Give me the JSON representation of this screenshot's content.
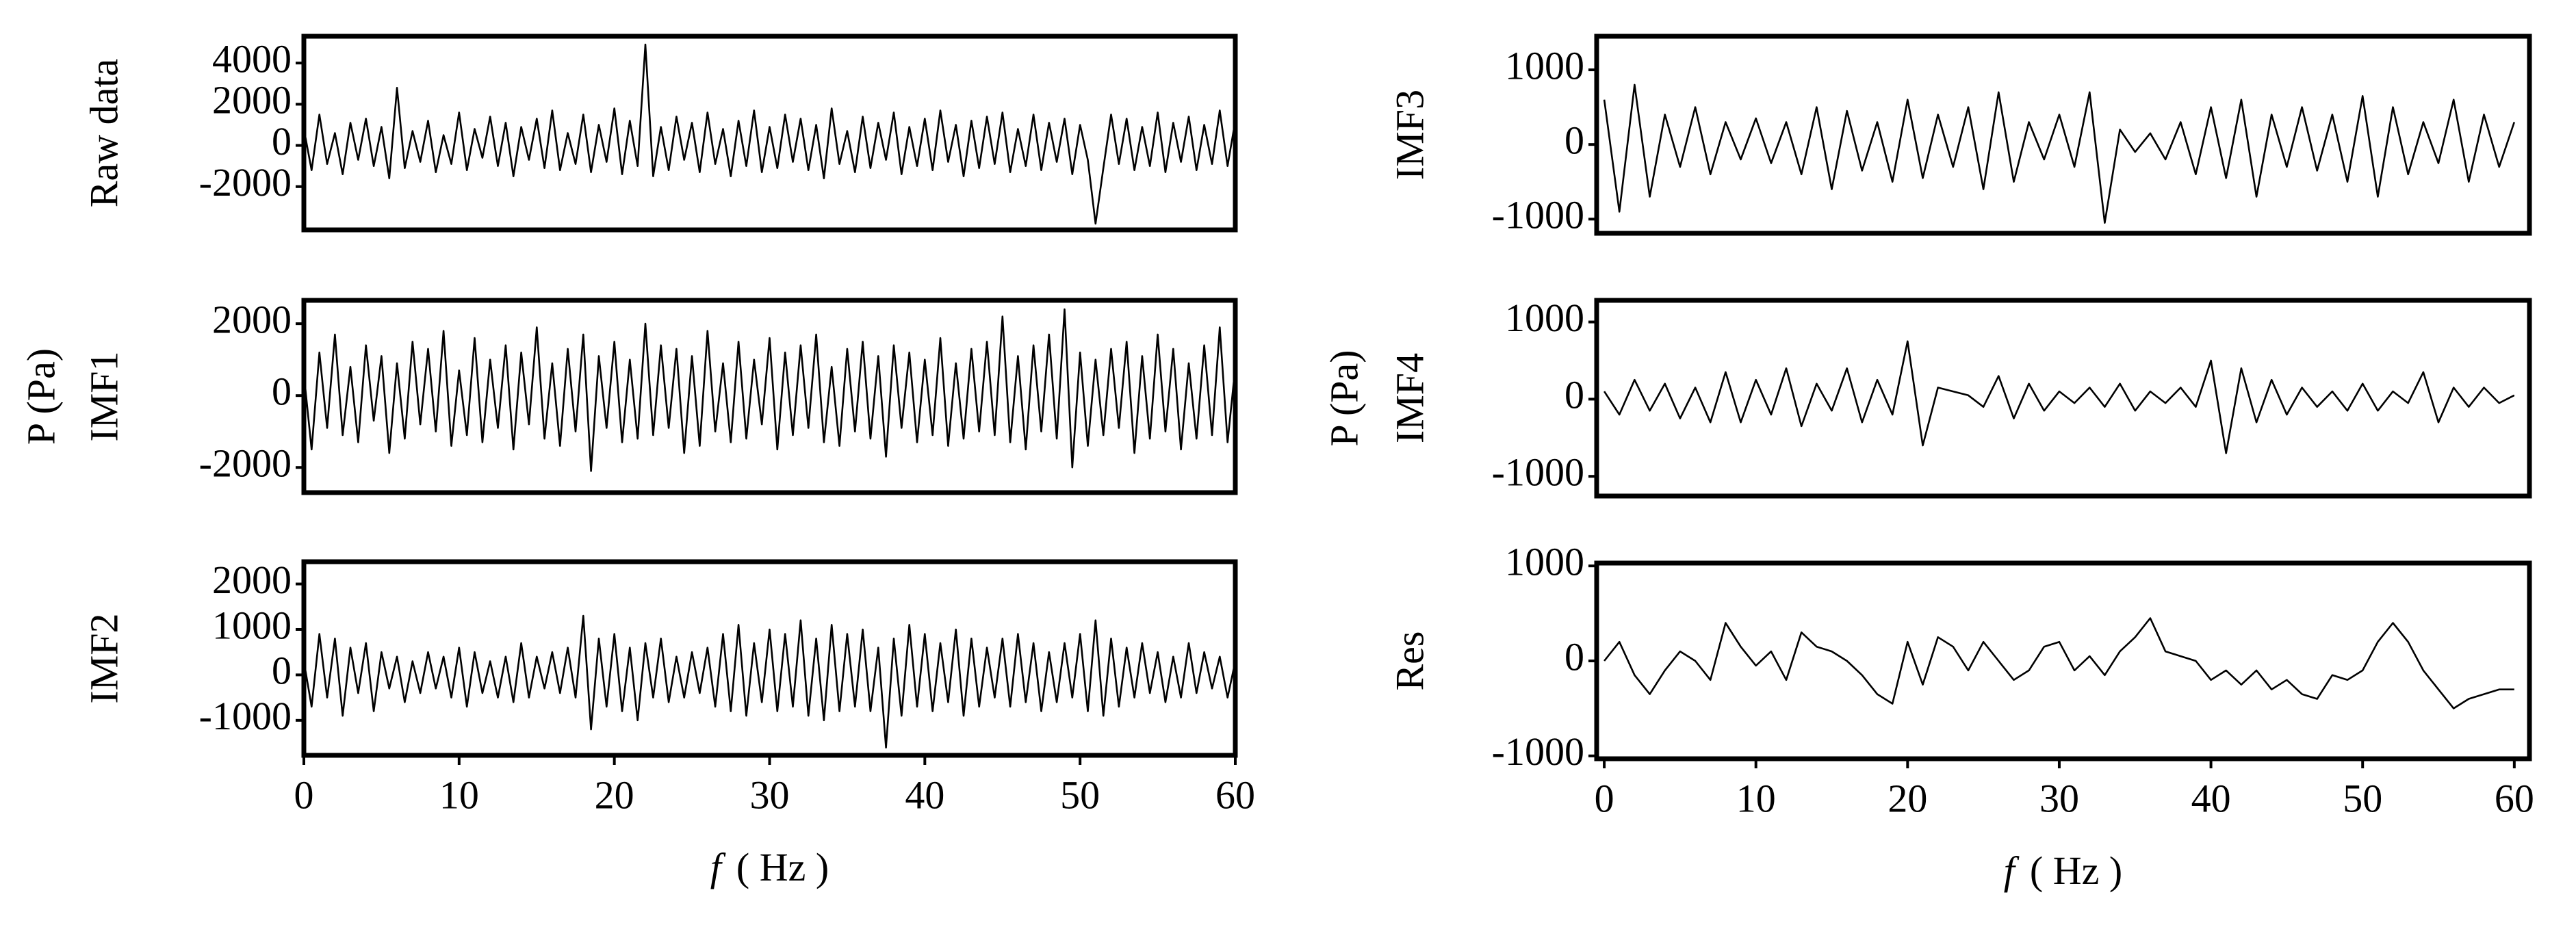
{
  "chart_data": [
    {
      "type": "line",
      "ylabel": "Raw data",
      "color": "#000000",
      "xlim": [
        0,
        60
      ],
      "ylim": [
        -4100,
        5300
      ],
      "yticks": [
        -2000,
        0,
        2000,
        4000
      ],
      "x": [
        0,
        0.5,
        1,
        1.5,
        2,
        2.5,
        3,
        3.5,
        4,
        4.5,
        5,
        5.5,
        6,
        6.5,
        7,
        7.5,
        8,
        8.5,
        9,
        9.5,
        10,
        10.5,
        11,
        11.5,
        12,
        12.5,
        13,
        13.5,
        14,
        14.5,
        15,
        15.5,
        16,
        16.5,
        17,
        17.5,
        18,
        18.5,
        19,
        19.5,
        20,
        20.5,
        21,
        21.5,
        22,
        22.5,
        23,
        23.5,
        24,
        24.5,
        25,
        25.5,
        26,
        26.5,
        27,
        27.5,
        28,
        28.5,
        29,
        29.5,
        30,
        30.5,
        31,
        31.5,
        32,
        32.5,
        33,
        33.5,
        34,
        34.5,
        35,
        35.5,
        36,
        36.5,
        37,
        37.5,
        38,
        38.5,
        39,
        39.5,
        40,
        40.5,
        41,
        41.5,
        42,
        42.5,
        43,
        43.5,
        44,
        44.5,
        45,
        45.5,
        46,
        46.5,
        47,
        47.5,
        48,
        48.5,
        49,
        49.5,
        50,
        50.5,
        51,
        51.5,
        52,
        52.5,
        53,
        53.5,
        54,
        54.5,
        55,
        55.5,
        56,
        56.5,
        57,
        57.5,
        58,
        58.5,
        59,
        59.5,
        60
      ],
      "values": [
        800,
        -1200,
        1500,
        -900,
        600,
        -1400,
        1100,
        -700,
        1300,
        -1000,
        900,
        -1600,
        2800,
        -1100,
        700,
        -800,
        1200,
        -1300,
        500,
        -900,
        1600,
        -1200,
        800,
        -600,
        1400,
        -1000,
        1100,
        -1500,
        900,
        -700,
        1300,
        -1100,
        1700,
        -1200,
        600,
        -900,
        1500,
        -1300,
        1000,
        -800,
        1800,
        -1400,
        1200,
        -1000,
        4900,
        -1500,
        900,
        -1200,
        1400,
        -700,
        1100,
        -1300,
        1600,
        -900,
        800,
        -1500,
        1200,
        -1000,
        1700,
        -1300,
        900,
        -1100,
        1500,
        -800,
        1300,
        -1200,
        1000,
        -1600,
        1800,
        -900,
        700,
        -1300,
        1400,
        -1100,
        1100,
        -700,
        1600,
        -1400,
        900,
        -1000,
        1300,
        -1200,
        1700,
        -800,
        1000,
        -1500,
        1200,
        -1100,
        1400,
        -900,
        1600,
        -1300,
        800,
        -1000,
        1500,
        -1200,
        1100,
        -800,
        1300,
        -1400,
        1000,
        -700,
        -3800,
        -1100,
        1500,
        -900,
        1300,
        -1200,
        900,
        -1000,
        1600,
        -1300,
        1100,
        -800,
        1400,
        -1200,
        1000,
        -900,
        1700,
        -1000,
        1200
      ]
    },
    {
      "type": "line",
      "ylabel": "IMF1",
      "group_label": "P (Pa)",
      "color": "#000000",
      "xlim": [
        0,
        60
      ],
      "ylim": [
        -2700,
        2650
      ],
      "yticks": [
        -2000,
        0,
        2000
      ],
      "x": [
        0,
        0.5,
        1,
        1.5,
        2,
        2.5,
        3,
        3.5,
        4,
        4.5,
        5,
        5.5,
        6,
        6.5,
        7,
        7.5,
        8,
        8.5,
        9,
        9.5,
        10,
        10.5,
        11,
        11.5,
        12,
        12.5,
        13,
        13.5,
        14,
        14.5,
        15,
        15.5,
        16,
        16.5,
        17,
        17.5,
        18,
        18.5,
        19,
        19.5,
        20,
        20.5,
        21,
        21.5,
        22,
        22.5,
        23,
        23.5,
        24,
        24.5,
        25,
        25.5,
        26,
        26.5,
        27,
        27.5,
        28,
        28.5,
        29,
        29.5,
        30,
        30.5,
        31,
        31.5,
        32,
        32.5,
        33,
        33.5,
        34,
        34.5,
        35,
        35.5,
        36,
        36.5,
        37,
        37.5,
        38,
        38.5,
        39,
        39.5,
        40,
        40.5,
        41,
        41.5,
        42,
        42.5,
        43,
        43.5,
        44,
        44.5,
        45,
        45.5,
        46,
        46.5,
        47,
        47.5,
        48,
        48.5,
        49,
        49.5,
        50,
        50.5,
        51,
        51.5,
        52,
        52.5,
        53,
        53.5,
        54,
        54.5,
        55,
        55.5,
        56,
        56.5,
        57,
        57.5,
        58,
        58.5,
        59,
        59.5,
        60
      ],
      "values": [
        600,
        -1500,
        1200,
        -900,
        1700,
        -1100,
        800,
        -1300,
        1400,
        -700,
        1100,
        -1600,
        900,
        -1200,
        1500,
        -800,
        1300,
        -1000,
        1800,
        -1400,
        700,
        -1100,
        1600,
        -1300,
        1000,
        -900,
        1400,
        -1500,
        1200,
        -800,
        1900,
        -1200,
        900,
        -1400,
        1300,
        -1000,
        1700,
        -2100,
        1100,
        -900,
        1500,
        -1300,
        1000,
        -1200,
        2000,
        -1100,
        1400,
        -900,
        1300,
        -1600,
        1100,
        -1400,
        1800,
        -1000,
        900,
        -1300,
        1500,
        -1200,
        1000,
        -800,
        1600,
        -1500,
        1200,
        -1100,
        1400,
        -900,
        1700,
        -1300,
        800,
        -1400,
        1300,
        -1000,
        1500,
        -1200,
        1100,
        -1700,
        1400,
        -900,
        1200,
        -1300,
        1000,
        -1100,
        1600,
        -1400,
        900,
        -1200,
        1300,
        -1000,
        1500,
        -1100,
        2200,
        -1300,
        1100,
        -1500,
        1400,
        -1000,
        1700,
        -1200,
        2400,
        -2000,
        1200,
        -1400,
        1000,
        -1100,
        1300,
        -900,
        1500,
        -1600,
        1100,
        -1200,
        1700,
        -1000,
        1300,
        -1500,
        900,
        -1200,
        1400,
        -1100,
        1900,
        -1300,
        800
      ]
    },
    {
      "type": "line",
      "ylabel": "IMF2",
      "color": "#000000",
      "xlim": [
        0,
        60
      ],
      "ylim": [
        -1770,
        2490
      ],
      "yticks": [
        -1000,
        0,
        1000,
        2000
      ],
      "xticks": [
        0,
        10,
        20,
        30,
        40,
        50,
        60
      ],
      "xlabel_symbol": "f",
      "xlabel_unit": "( Hz )",
      "x": [
        0,
        0.5,
        1,
        1.5,
        2,
        2.5,
        3,
        3.5,
        4,
        4.5,
        5,
        5.5,
        6,
        6.5,
        7,
        7.5,
        8,
        8.5,
        9,
        9.5,
        10,
        10.5,
        11,
        11.5,
        12,
        12.5,
        13,
        13.5,
        14,
        14.5,
        15,
        15.5,
        16,
        16.5,
        17,
        17.5,
        18,
        18.5,
        19,
        19.5,
        20,
        20.5,
        21,
        21.5,
        22,
        22.5,
        23,
        23.5,
        24,
        24.5,
        25,
        25.5,
        26,
        26.5,
        27,
        27.5,
        28,
        28.5,
        29,
        29.5,
        30,
        30.5,
        31,
        31.5,
        32,
        32.5,
        33,
        33.5,
        34,
        34.5,
        35,
        35.5,
        36,
        36.5,
        37,
        37.5,
        38,
        38.5,
        39,
        39.5,
        40,
        40.5,
        41,
        41.5,
        42,
        42.5,
        43,
        43.5,
        44,
        44.5,
        45,
        45.5,
        46,
        46.5,
        47,
        47.5,
        48,
        48.5,
        49,
        49.5,
        50,
        50.5,
        51,
        51.5,
        52,
        52.5,
        53,
        53.5,
        54,
        54.5,
        55,
        55.5,
        56,
        56.5,
        57,
        57.5,
        58,
        58.5,
        59,
        59.5,
        60
      ],
      "values": [
        300,
        -700,
        900,
        -500,
        800,
        -900,
        600,
        -400,
        700,
        -800,
        500,
        -300,
        400,
        -600,
        300,
        -400,
        500,
        -300,
        400,
        -500,
        600,
        -700,
        500,
        -400,
        300,
        -500,
        400,
        -600,
        700,
        -500,
        400,
        -300,
        500,
        -400,
        600,
        -500,
        1300,
        -1200,
        800,
        -700,
        900,
        -800,
        600,
        -1000,
        700,
        -500,
        800,
        -600,
        400,
        -500,
        500,
        -400,
        600,
        -700,
        900,
        -800,
        1100,
        -900,
        700,
        -600,
        1000,
        -800,
        900,
        -700,
        1200,
        -900,
        800,
        -1000,
        1100,
        -800,
        900,
        -700,
        1000,
        -800,
        600,
        -1600,
        800,
        -900,
        1100,
        -700,
        900,
        -800,
        700,
        -600,
        1000,
        -900,
        800,
        -700,
        600,
        -500,
        800,
        -700,
        900,
        -600,
        700,
        -800,
        500,
        -600,
        700,
        -500,
        900,
        -800,
        1200,
        -900,
        800,
        -700,
        600,
        -500,
        700,
        -400,
        500,
        -600,
        400,
        -500,
        700,
        -400,
        500,
        -300,
        400,
        -500,
        300
      ]
    },
    {
      "type": "line",
      "ylabel": "IMF3",
      "color": "#000000",
      "xlim": [
        -0.5,
        61
      ],
      "ylim": [
        -1190,
        1450
      ],
      "yticks": [
        -1000,
        0,
        1000
      ],
      "x": [
        0,
        1,
        2,
        3,
        4,
        5,
        6,
        7,
        8,
        9,
        10,
        11,
        12,
        13,
        14,
        15,
        16,
        17,
        18,
        19,
        20,
        21,
        22,
        23,
        24,
        25,
        26,
        27,
        28,
        29,
        30,
        31,
        32,
        33,
        34,
        35,
        36,
        37,
        38,
        39,
        40,
        41,
        42,
        43,
        44,
        45,
        46,
        47,
        48,
        49,
        50,
        51,
        52,
        53,
        54,
        55,
        56,
        57,
        58,
        59,
        60
      ],
      "values": [
        600,
        -900,
        800,
        -700,
        400,
        -300,
        500,
        -400,
        300,
        -200,
        350,
        -250,
        300,
        -400,
        500,
        -600,
        450,
        -350,
        300,
        -500,
        600,
        -450,
        400,
        -300,
        500,
        -600,
        700,
        -500,
        300,
        -200,
        400,
        -300,
        700,
        -1050,
        200,
        -100,
        150,
        -200,
        300,
        -400,
        500,
        -450,
        600,
        -700,
        400,
        -300,
        500,
        -350,
        400,
        -500,
        650,
        -700,
        500,
        -400,
        300,
        -250,
        600,
        -500,
        400,
        -300,
        300
      ]
    },
    {
      "type": "line",
      "ylabel": "IMF4",
      "group_label": "P (Pa)",
      "color": "#000000",
      "xlim": [
        -0.5,
        61
      ],
      "ylim": [
        -1255,
        1280
      ],
      "yticks": [
        -1000,
        0,
        1000
      ],
      "x": [
        0,
        1,
        2,
        3,
        4,
        5,
        6,
        7,
        8,
        9,
        10,
        11,
        12,
        13,
        14,
        15,
        16,
        17,
        18,
        19,
        20,
        21,
        22,
        23,
        24,
        25,
        26,
        27,
        28,
        29,
        30,
        31,
        32,
        33,
        34,
        35,
        36,
        37,
        38,
        39,
        40,
        41,
        42,
        43,
        44,
        45,
        46,
        47,
        48,
        49,
        50,
        51,
        52,
        53,
        54,
        55,
        56,
        57,
        58,
        59,
        60
      ],
      "values": [
        100,
        -200,
        250,
        -150,
        200,
        -250,
        150,
        -300,
        350,
        -300,
        250,
        -200,
        400,
        -350,
        200,
        -150,
        400,
        -300,
        250,
        -200,
        750,
        -600,
        150,
        100,
        50,
        -100,
        300,
        -250,
        200,
        -150,
        100,
        -50,
        150,
        -100,
        200,
        -150,
        100,
        -50,
        150,
        -100,
        500,
        -700,
        400,
        -300,
        250,
        -200,
        150,
        -100,
        100,
        -150,
        200,
        -150,
        100,
        -50,
        350,
        -300,
        150,
        -100,
        150,
        -50,
        50
      ]
    },
    {
      "type": "line",
      "ylabel": "Res",
      "color": "#000000",
      "xlim": [
        -0.5,
        61
      ],
      "ylim": [
        -1030,
        1030
      ],
      "yticks": [
        -1000,
        0,
        1000
      ],
      "xticks": [
        0,
        10,
        20,
        30,
        40,
        50,
        60
      ],
      "xlabel_symbol": "f",
      "xlabel_unit": "( Hz )",
      "x": [
        0,
        1,
        2,
        3,
        4,
        5,
        6,
        7,
        8,
        9,
        10,
        11,
        12,
        13,
        14,
        15,
        16,
        17,
        18,
        19,
        20,
        21,
        22,
        23,
        24,
        25,
        26,
        27,
        28,
        29,
        30,
        31,
        32,
        33,
        34,
        35,
        36,
        37,
        38,
        39,
        40,
        41,
        42,
        43,
        44,
        45,
        46,
        47,
        48,
        49,
        50,
        51,
        52,
        53,
        54,
        55,
        56,
        57,
        58,
        59,
        60
      ],
      "values": [
        0,
        200,
        -150,
        -350,
        -100,
        100,
        0,
        -200,
        400,
        150,
        -50,
        100,
        -200,
        300,
        150,
        100,
        0,
        -150,
        -350,
        -450,
        200,
        -250,
        250,
        150,
        -100,
        200,
        0,
        -200,
        -100,
        150,
        200,
        -100,
        50,
        -150,
        100,
        250,
        450,
        100,
        50,
        0,
        -200,
        -100,
        -250,
        -100,
        -300,
        -200,
        -350,
        -400,
        -150,
        -200,
        -100,
        200,
        400,
        200,
        -100,
        -300,
        -500,
        -400,
        -350,
        -300,
        -300
      ]
    }
  ]
}
